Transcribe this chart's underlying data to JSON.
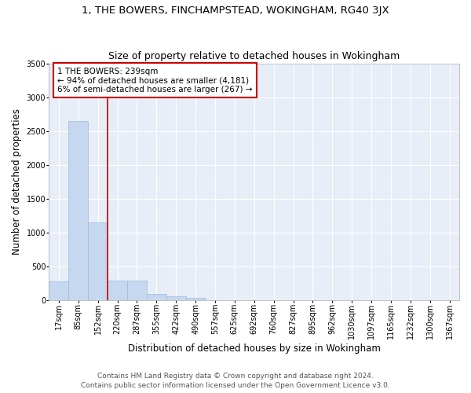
{
  "title1": "1, THE BOWERS, FINCHAMPSTEAD, WOKINGHAM, RG40 3JX",
  "title2": "Size of property relative to detached houses in Wokingham",
  "xlabel": "Distribution of detached houses by size in Wokingham",
  "ylabel": "Number of detached properties",
  "categories": [
    "17sqm",
    "85sqm",
    "152sqm",
    "220sqm",
    "287sqm",
    "355sqm",
    "422sqm",
    "490sqm",
    "557sqm",
    "625sqm",
    "692sqm",
    "760sqm",
    "827sqm",
    "895sqm",
    "962sqm",
    "1030sqm",
    "1097sqm",
    "1165sqm",
    "1232sqm",
    "1300sqm",
    "1367sqm"
  ],
  "values": [
    275,
    2650,
    1150,
    290,
    285,
    95,
    60,
    35,
    0,
    0,
    0,
    0,
    0,
    0,
    0,
    0,
    0,
    0,
    0,
    0,
    0
  ],
  "bar_color": "#c5d8f0",
  "bar_edge_color": "#a0b8d8",
  "vline_index": 3,
  "vline_color": "#cc0000",
  "annotation_text": "1 THE BOWERS: 239sqm\n← 94% of detached houses are smaller (4,181)\n6% of semi-detached houses are larger (267) →",
  "annotation_box_color": "#cc0000",
  "ylim": [
    0,
    3500
  ],
  "yticks": [
    0,
    500,
    1000,
    1500,
    2000,
    2500,
    3000,
    3500
  ],
  "background_color": "#e8eef8",
  "footer": "Contains HM Land Registry data © Crown copyright and database right 2024.\nContains public sector information licensed under the Open Government Licence v3.0.",
  "title1_fontsize": 9.5,
  "title2_fontsize": 9,
  "xlabel_fontsize": 8.5,
  "ylabel_fontsize": 8.5,
  "annotation_fontsize": 7.5,
  "tick_fontsize": 7,
  "footer_fontsize": 6.5
}
